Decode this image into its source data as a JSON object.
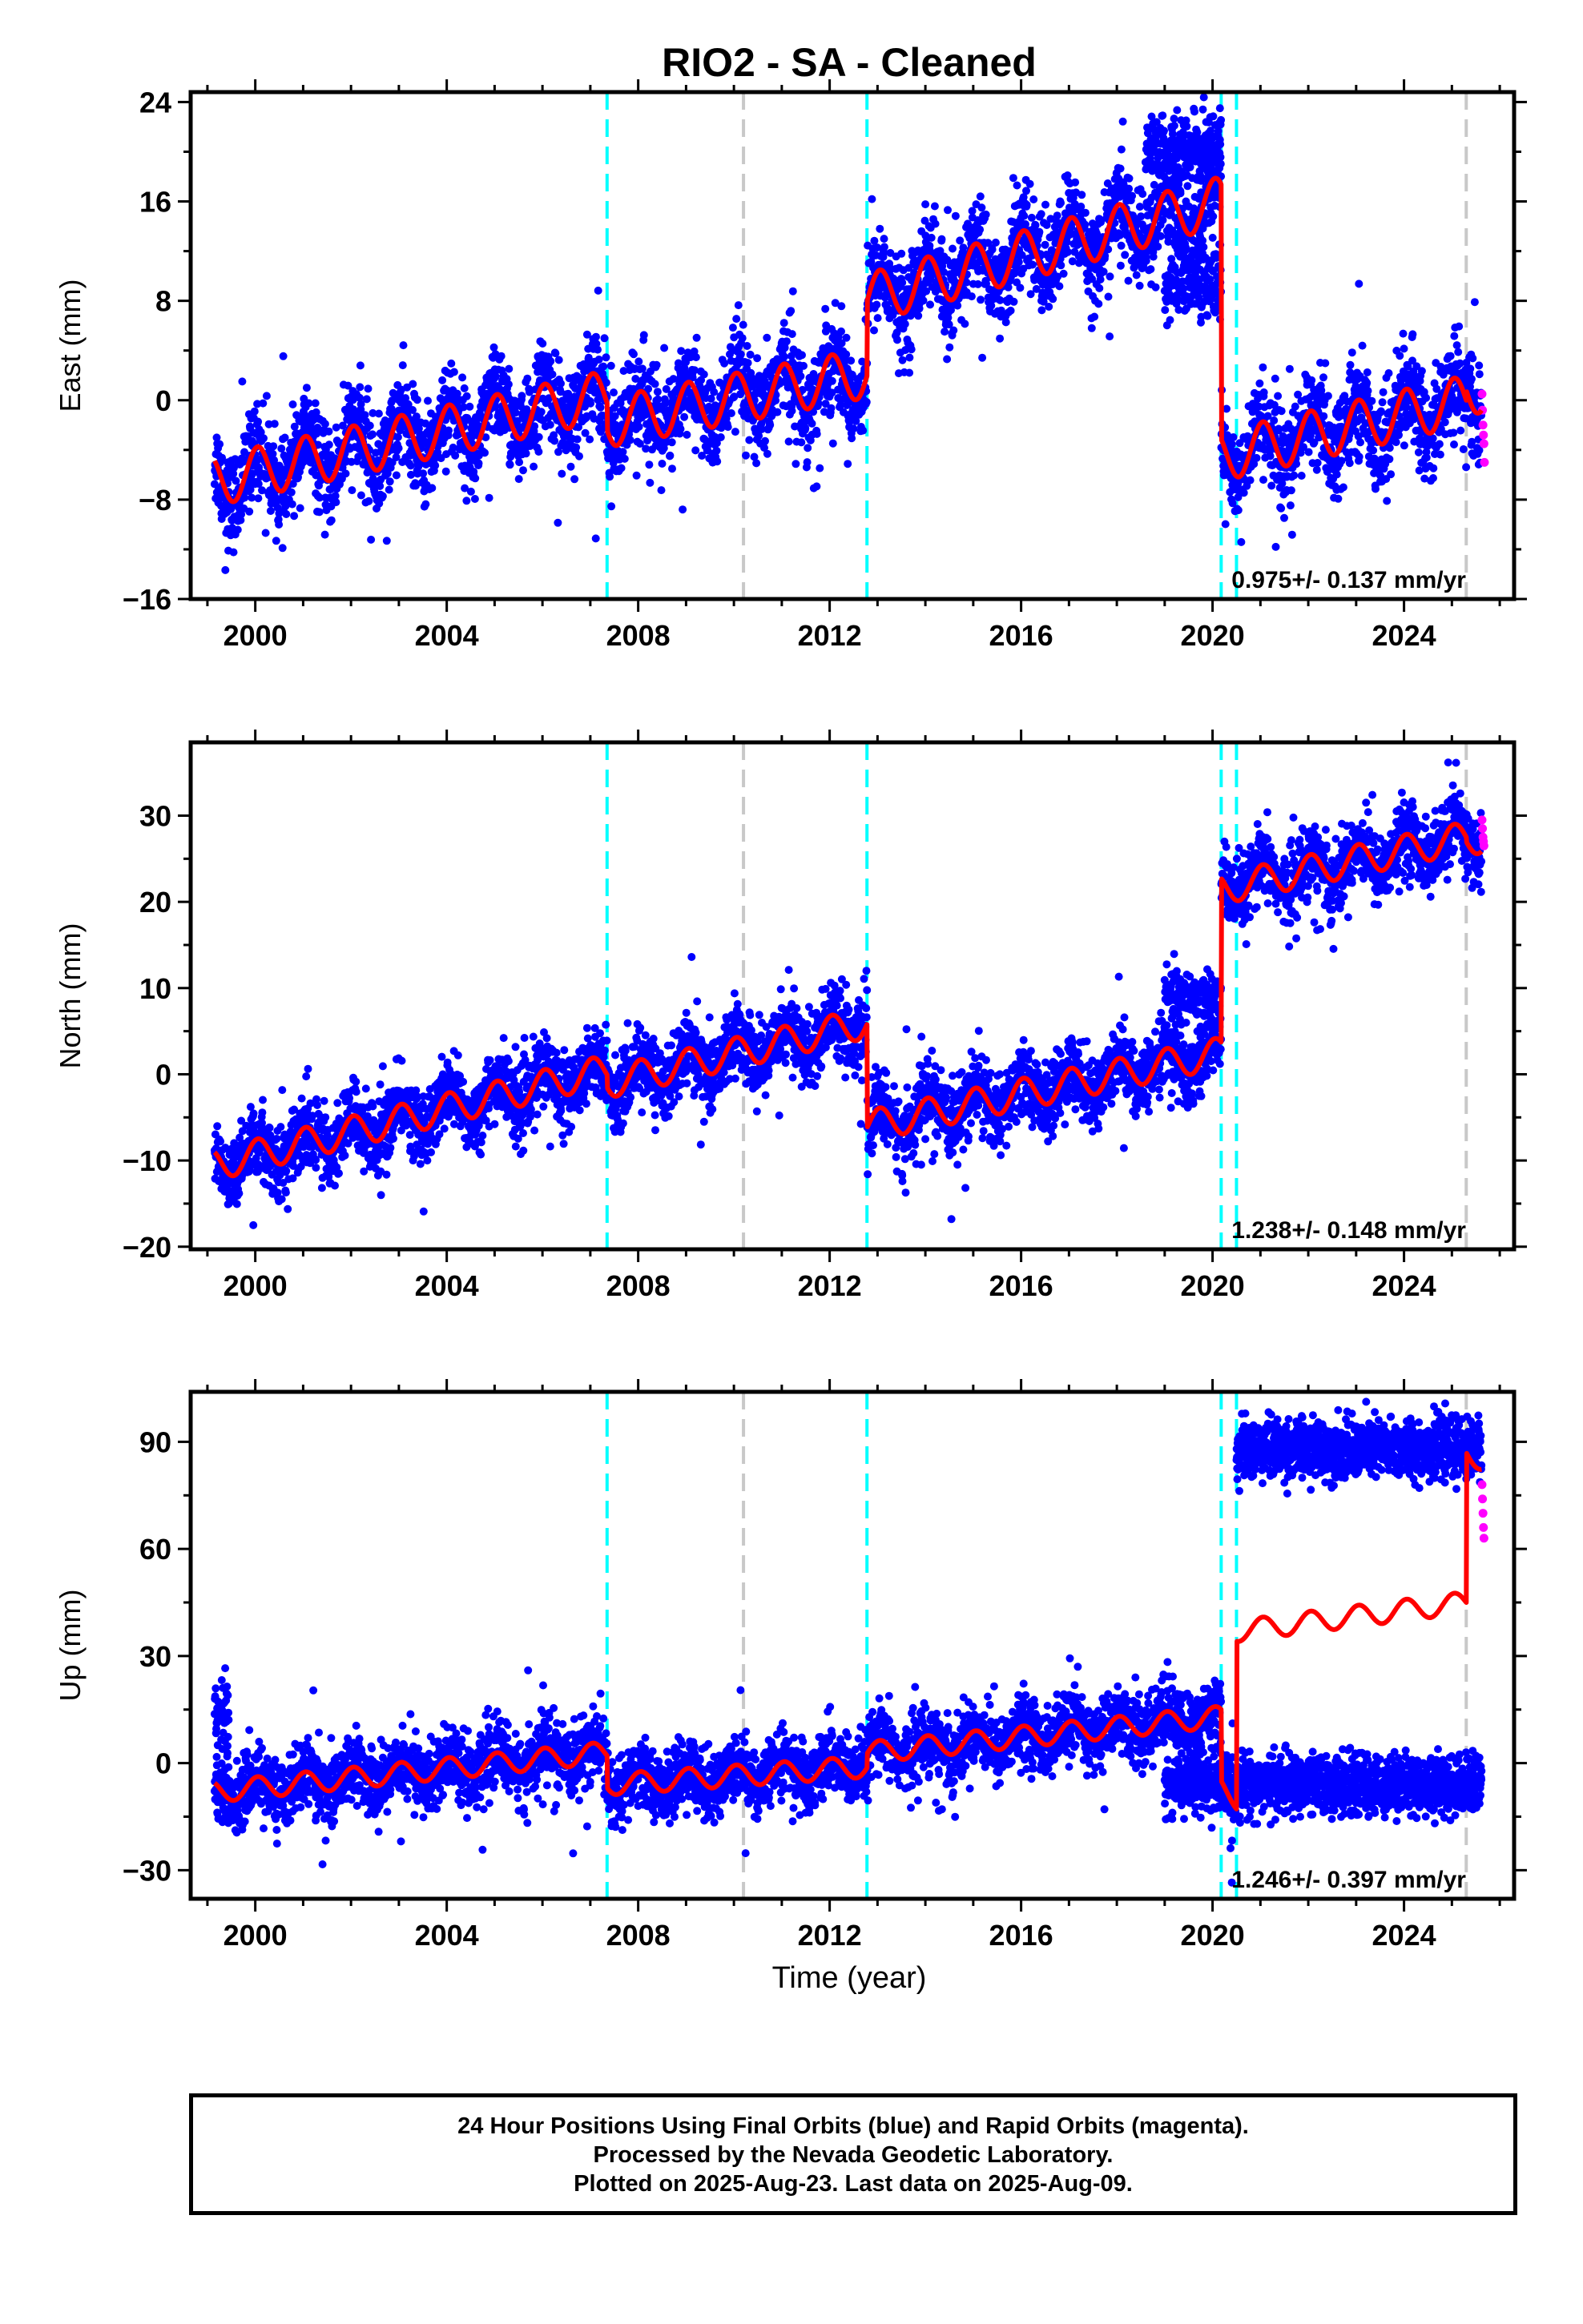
{
  "title": "RIO2  - SA - Cleaned",
  "xlabel": "Time (year)",
  "colors": {
    "final_orbits": "#0000ff",
    "rapid_orbits": "#ff00ff",
    "model": "#ff0000",
    "equipment_change": "#00ffff",
    "other_offset": "#c8c8c8"
  },
  "footer": {
    "line1": "24 Hour Positions Using Final Orbits (blue) and Rapid Orbits (magenta).",
    "line2": "Processed by the Nevada Geodetic Laboratory.",
    "line3": "Plotted on 2025-Aug-23. Last data on 2025-Aug-09."
  },
  "chart_data": [
    {
      "type": "scatter",
      "component": "east",
      "ylabel": "East (mm)",
      "xlim": [
        1998.65,
        2026.3
      ],
      "ylim": [
        -16,
        24.8
      ],
      "xticks": [
        2000,
        2004,
        2008,
        2012,
        2016,
        2020,
        2024
      ],
      "yticks": [
        -16,
        -8,
        0,
        8,
        16,
        24
      ],
      "rate_label": "0.975+/- 0.137 mm/yr",
      "vlines_cyan": [
        2007.35,
        2012.78,
        2020.18,
        2020.5
      ],
      "vlines_gray": [
        2010.2,
        2025.3
      ],
      "trend_segments": [
        {
          "x0": 1999.15,
          "x1": 2007.35,
          "y0": -6.5,
          "y1": 0.4
        },
        {
          "x0": 2007.35,
          "x1": 2012.78,
          "y0": -1.8,
          "y1": 2.2
        },
        {
          "x0": 2012.78,
          "x1": 2020.18,
          "y0": 8.2,
          "y1": 16.0
        },
        {
          "x0": 2020.18,
          "x1": 2025.3,
          "y0": -4.5,
          "y1": 0.0
        },
        {
          "x0": 2025.3,
          "x1": 2025.62,
          "y0": 0.8,
          "y1": 1.0
        }
      ],
      "seasonal_amplitude": 2.0,
      "scatter_sigma": 1.8,
      "outlier_clusters": [
        {
          "x0": 2019.0,
          "x1": 2020.18,
          "y": 10.0,
          "sigma": 1.6
        },
        {
          "x0": 2018.6,
          "x1": 2020.18,
          "y": 20.0,
          "sigma": 1.5
        }
      ],
      "rapid_points": [
        {
          "x": 2025.63,
          "y": 0.5
        },
        {
          "x": 2025.64,
          "y": -0.8
        },
        {
          "x": 2025.65,
          "y": -2.0
        },
        {
          "x": 2025.66,
          "y": -2.8
        },
        {
          "x": 2025.67,
          "y": -3.5
        },
        {
          "x": 2025.68,
          "y": -5.0
        }
      ]
    },
    {
      "type": "scatter",
      "component": "north",
      "ylabel": "North (mm)",
      "xlim": [
        1998.65,
        2026.3
      ],
      "ylim": [
        -20.3,
        38.5
      ],
      "xticks": [
        2000,
        2004,
        2008,
        2012,
        2016,
        2020,
        2024
      ],
      "yticks": [
        -20,
        -10,
        0,
        10,
        20,
        30
      ],
      "rate_label": "1.238+/- 0.148 mm/yr",
      "vlines_cyan": [
        2007.35,
        2012.78,
        2020.18,
        2020.5
      ],
      "vlines_gray": [
        2010.2,
        2025.3
      ],
      "trend_segments": [
        {
          "x0": 1999.15,
          "x1": 2007.35,
          "y0": -10.5,
          "y1": 0.5
        },
        {
          "x0": 2007.35,
          "x1": 2012.78,
          "y0": -1.0,
          "y1": 6.0
        },
        {
          "x0": 2012.78,
          "x1": 2020.18,
          "y0": -6.0,
          "y1": 2.5
        },
        {
          "x0": 2020.18,
          "x1": 2025.3,
          "y0": 21.5,
          "y1": 27.5
        },
        {
          "x0": 2025.3,
          "x1": 2025.62,
          "y0": 27.0,
          "y1": 27.5
        }
      ],
      "seasonal_amplitude": 1.8,
      "scatter_sigma": 2.0,
      "outlier_clusters": [
        {
          "x0": 2019.0,
          "x1": 2020.18,
          "y": 9.0,
          "sigma": 1.5
        }
      ],
      "rapid_points": [
        {
          "x": 2025.63,
          "y": 29.5
        },
        {
          "x": 2025.64,
          "y": 28.5
        },
        {
          "x": 2025.65,
          "y": 27.5
        },
        {
          "x": 2025.66,
          "y": 27.0
        },
        {
          "x": 2025.67,
          "y": 26.5
        }
      ]
    },
    {
      "type": "scatter",
      "component": "up",
      "ylabel": "Up (mm)",
      "xlim": [
        1998.65,
        2026.3
      ],
      "ylim": [
        -38,
        104
      ],
      "xticks": [
        2000,
        2004,
        2008,
        2012,
        2016,
        2020,
        2024
      ],
      "yticks": [
        -30,
        0,
        30,
        60,
        90
      ],
      "rate_label": "1.246+/- 0.397 mm/yr",
      "vlines_cyan": [
        2007.35,
        2012.78,
        2020.18,
        2020.5
      ],
      "vlines_gray": [
        2010.2,
        2025.3
      ],
      "trend_segments": [
        {
          "x0": 1999.15,
          "x1": 2007.35,
          "y0": -8.0,
          "y1": 3.0
        },
        {
          "x0": 2007.35,
          "x1": 2012.78,
          "y0": -6.0,
          "y1": -1.0
        },
        {
          "x0": 2012.78,
          "x1": 2020.18,
          "y0": 3.0,
          "y1": 13.0
        },
        {
          "x0": 2020.18,
          "x1": 2020.5,
          "y0": -7.0,
          "y1": -10.0
        },
        {
          "x0": 2020.5,
          "x1": 2025.3,
          "y0": 37.0,
          "y1": 45.0
        },
        {
          "x0": 2025.3,
          "x1": 2025.62,
          "y0": 87.0,
          "y1": 85.0
        }
      ],
      "seasonal_amplitude": 3.0,
      "scatter_sigma": 4.5,
      "data_clusters": [
        {
          "x0": 2020.5,
          "x1": 2025.62,
          "y": 88.0,
          "sigma": 4.0
        },
        {
          "x0": 2019.0,
          "x1": 2025.62,
          "y": -6.0,
          "sigma": 4.0
        }
      ],
      "early_spike": {
        "x0": 1999.15,
        "x1": 1999.45,
        "y": 15.0,
        "sigma": 6.0
      },
      "rapid_points": [
        {
          "x": 2025.63,
          "y": 78.0
        },
        {
          "x": 2025.64,
          "y": 74.0
        },
        {
          "x": 2025.65,
          "y": 70.0
        },
        {
          "x": 2025.66,
          "y": 66.0
        },
        {
          "x": 2025.67,
          "y": 63.0
        }
      ]
    }
  ]
}
